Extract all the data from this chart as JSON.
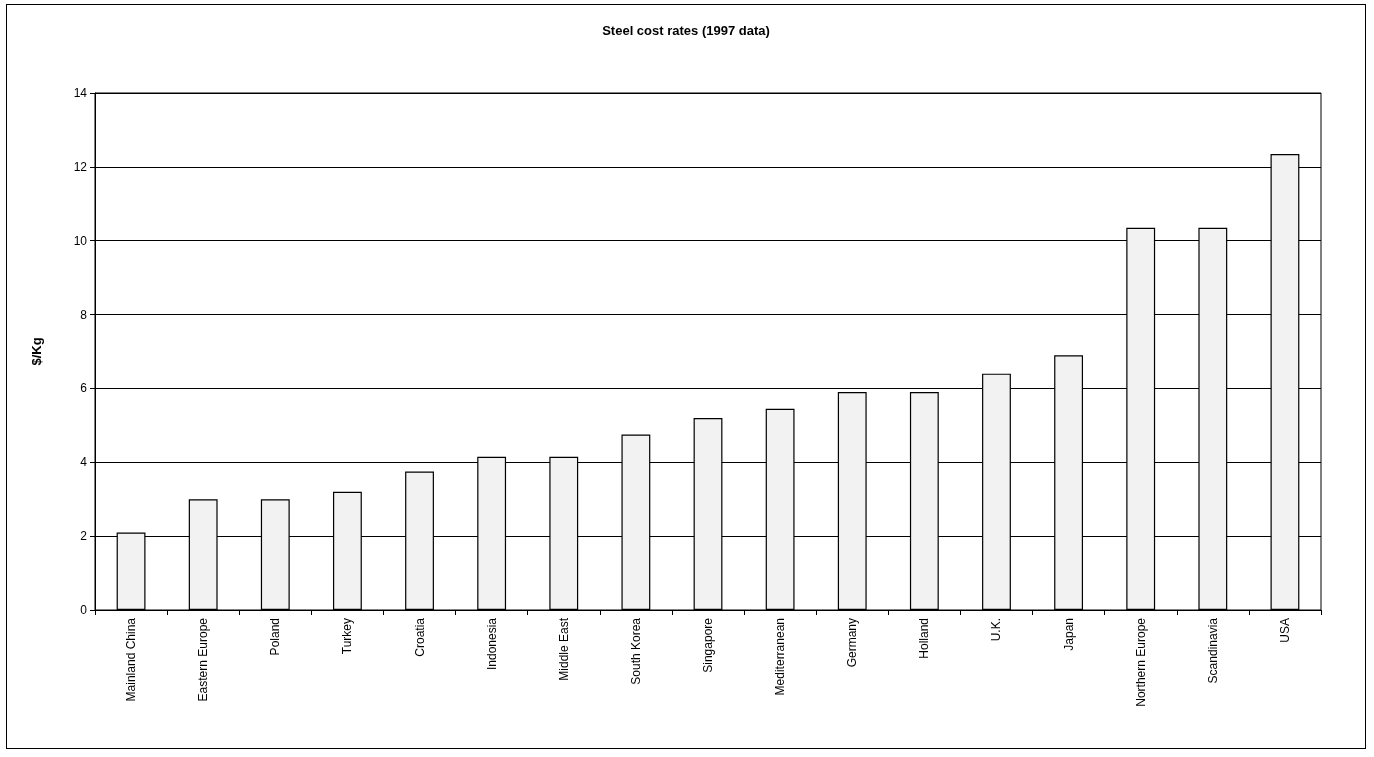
{
  "chart_data": {
    "type": "bar",
    "title": "Steel cost rates (1997 data)",
    "ylabel": "$/Kg",
    "categories": [
      "Mainland China",
      "Eastern Europe",
      "Poland",
      "Turkey",
      "Croatia",
      "Indonesia",
      "Middle East",
      "South Korea",
      "Singapore",
      "Mediterranean",
      "Germany",
      "Holland",
      "U.K.",
      "Japan",
      "Northern Europe",
      "Scandinavia",
      "USA"
    ],
    "values": [
      2.1,
      3.0,
      3.0,
      3.2,
      3.75,
      4.15,
      4.15,
      4.75,
      5.2,
      5.45,
      5.9,
      5.9,
      6.4,
      6.9,
      10.35,
      10.35,
      12.35
    ],
    "color": "#f2f2f2",
    "ylim": [
      0,
      14
    ],
    "yticks": [
      0,
      2,
      4,
      6,
      8,
      10,
      12,
      14
    ],
    "grid": "y"
  }
}
